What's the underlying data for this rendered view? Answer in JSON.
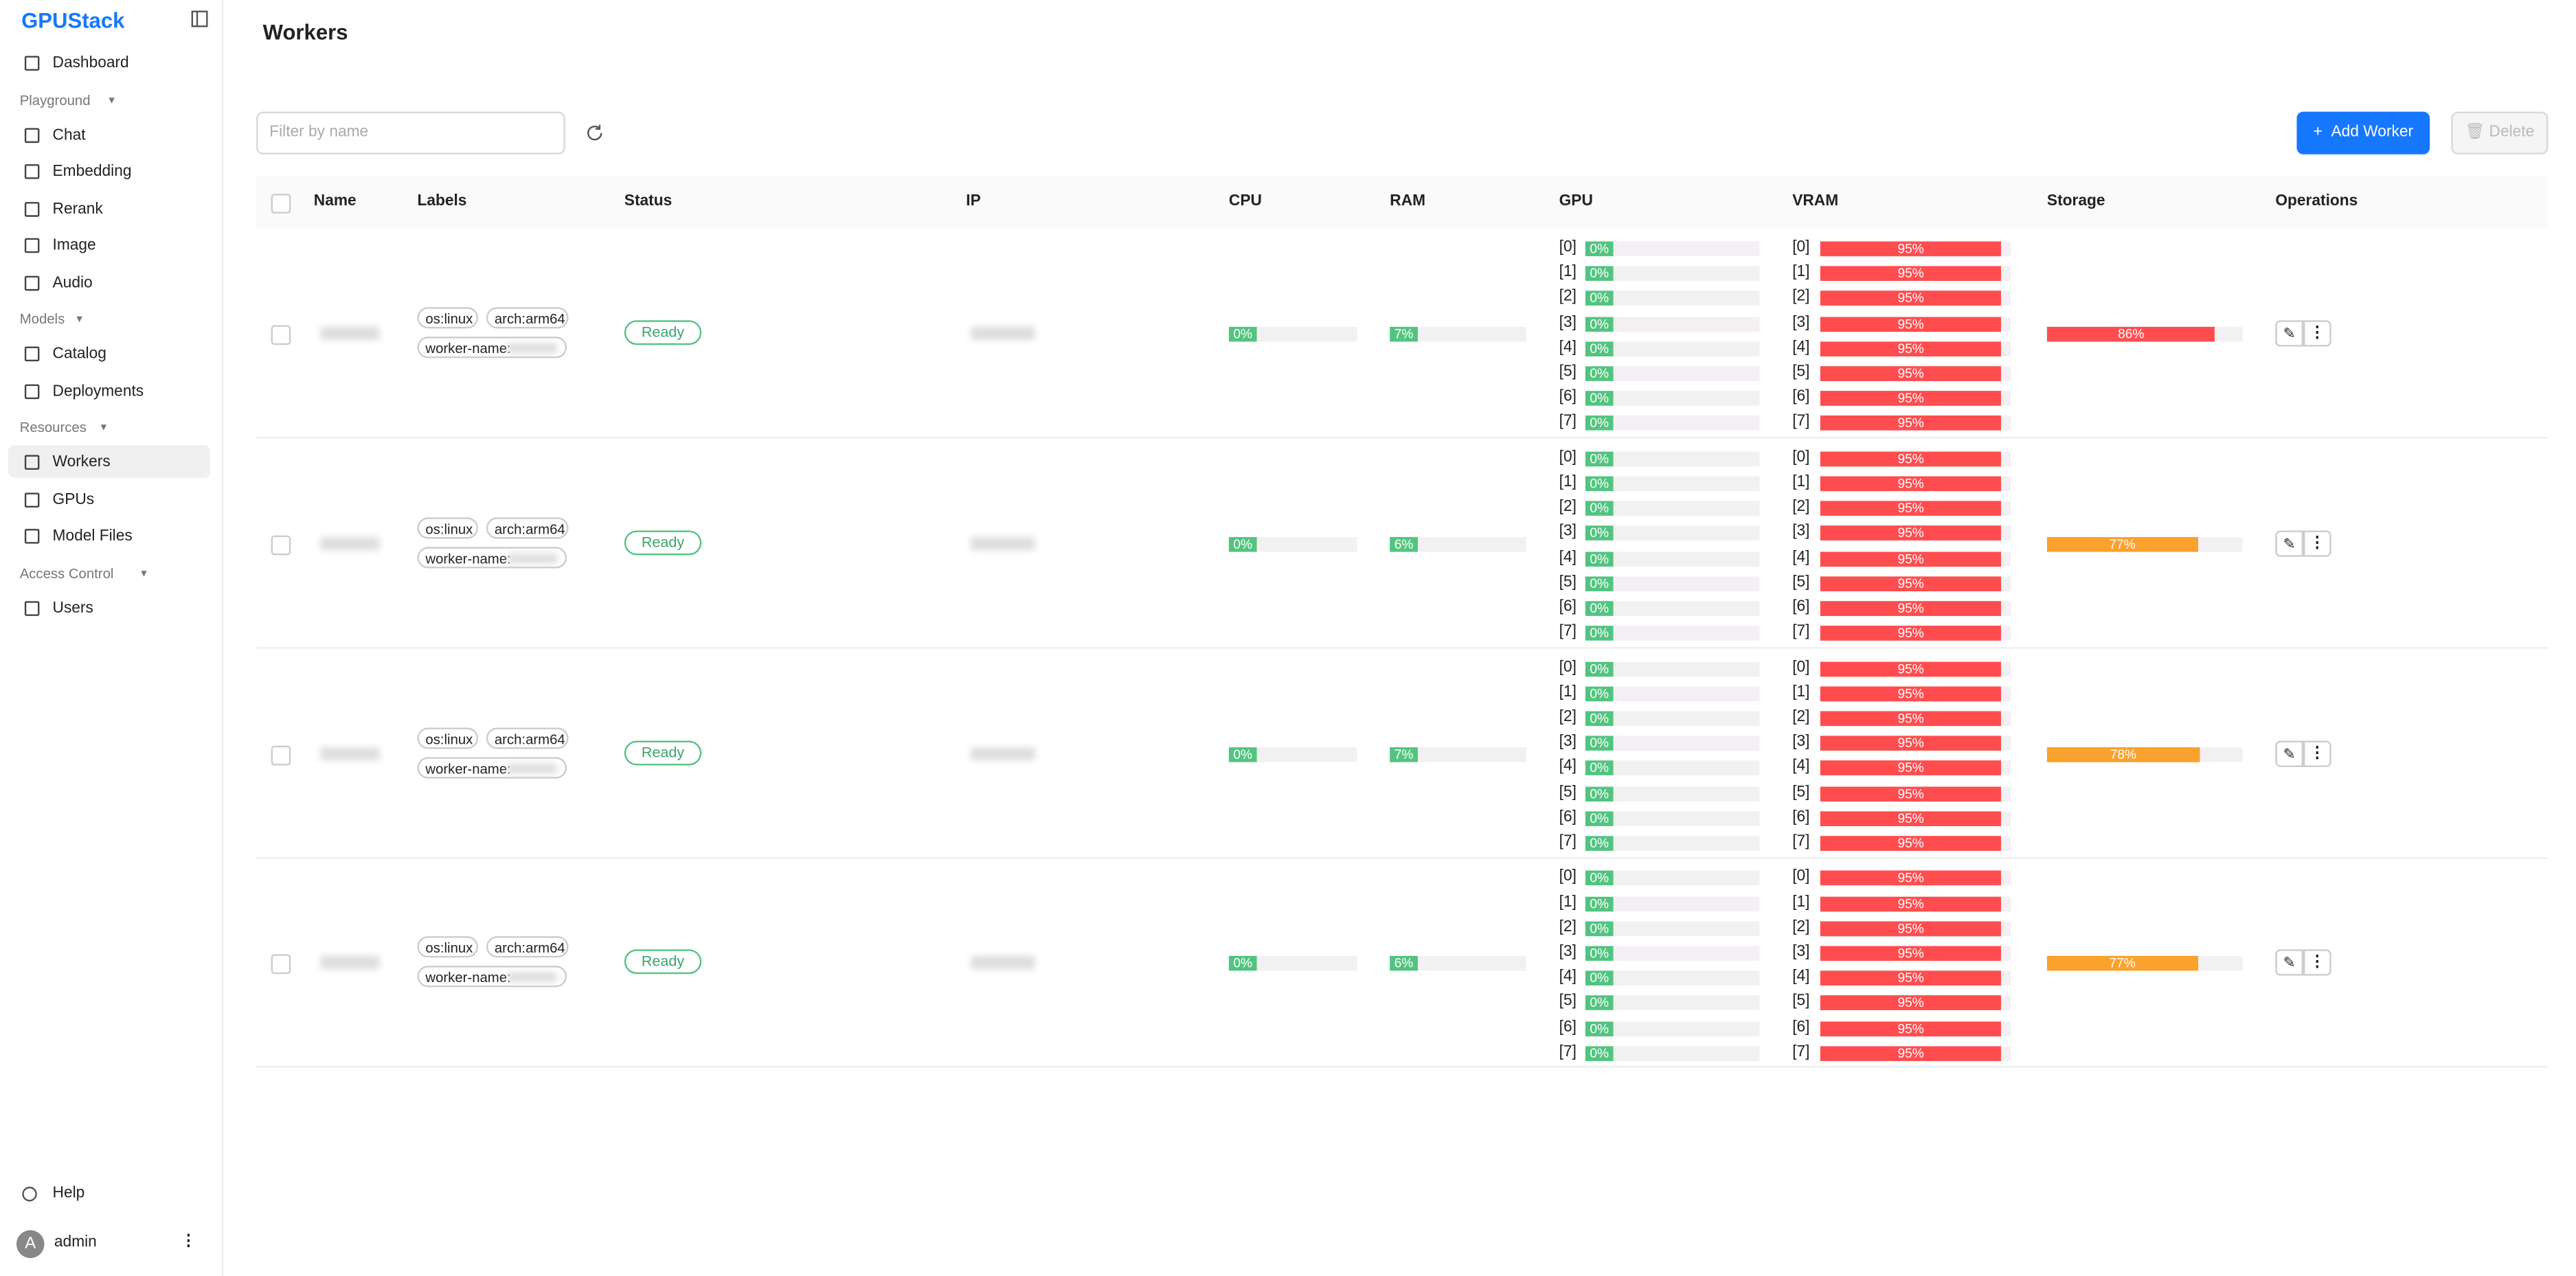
{
  "sidebar": {
    "logo": "GPUStack",
    "sections": [
      {
        "items": [
          {
            "label": "Dashboard"
          }
        ]
      },
      {
        "title": "Playground",
        "items": [
          {
            "label": "Chat"
          },
          {
            "label": "Embedding"
          },
          {
            "label": "Rerank"
          },
          {
            "label": "Image"
          },
          {
            "label": "Audio"
          }
        ]
      },
      {
        "title": "Models",
        "items": [
          {
            "label": "Catalog"
          },
          {
            "label": "Deployments"
          }
        ]
      },
      {
        "title": "Resources",
        "items": [
          {
            "label": "Workers",
            "active": true
          },
          {
            "label": "GPUs"
          },
          {
            "label": "Model Files"
          }
        ]
      },
      {
        "title": "Access Control",
        "items": [
          {
            "label": "Users"
          }
        ]
      }
    ],
    "help": "Help",
    "avatar": "A",
    "user": "admin"
  },
  "main": {
    "title": "Workers",
    "filter_placeholder": "Filter by name",
    "add_button": "Add Worker",
    "delete_button": "Delete"
  },
  "table": {
    "columns": [
      "Name",
      "Labels",
      "Status",
      "IP",
      "CPU",
      "RAM",
      "GPU",
      "VRAM",
      "Storage",
      "Operations"
    ],
    "device_labels": [
      "[0]",
      "[1]",
      "[2]",
      "[3]",
      "[4]",
      "[5]",
      "[6]",
      "[7]"
    ],
    "rows": [
      {
        "labels": [
          "os:linux",
          "arch:arm64",
          "worker-name:"
        ],
        "status": "Ready",
        "cpu": {
          "value": 0,
          "label": "0%"
        },
        "ram": {
          "value": 7,
          "label": "7%"
        },
        "gpu": [
          {
            "value": 0,
            "label": "0%"
          },
          {
            "value": 0,
            "label": "0%"
          },
          {
            "value": 0,
            "label": "0%"
          },
          {
            "value": 0,
            "label": "0%"
          },
          {
            "value": 0,
            "label": "0%"
          },
          {
            "value": 0,
            "label": "0%"
          },
          {
            "value": 0,
            "label": "0%"
          },
          {
            "value": 0,
            "label": "0%"
          }
        ],
        "vram": [
          {
            "value": 95,
            "label": "95%"
          },
          {
            "value": 95,
            "label": "95%"
          },
          {
            "value": 95,
            "label": "95%"
          },
          {
            "value": 95,
            "label": "95%"
          },
          {
            "value": 95,
            "label": "95%"
          },
          {
            "value": 95,
            "label": "95%"
          },
          {
            "value": 95,
            "label": "95%"
          },
          {
            "value": 95,
            "label": "95%"
          }
        ],
        "storage": {
          "value": 86,
          "label": "86%"
        }
      },
      {
        "labels": [
          "os:linux",
          "arch:arm64",
          "worker-name:"
        ],
        "status": "Ready",
        "cpu": {
          "value": 0,
          "label": "0%"
        },
        "ram": {
          "value": 6,
          "label": "6%"
        },
        "gpu": [
          {
            "value": 0,
            "label": "0%"
          },
          {
            "value": 0,
            "label": "0%"
          },
          {
            "value": 0,
            "label": "0%"
          },
          {
            "value": 0,
            "label": "0%"
          },
          {
            "value": 0,
            "label": "0%"
          },
          {
            "value": 0,
            "label": "0%"
          },
          {
            "value": 0,
            "label": "0%"
          },
          {
            "value": 0,
            "label": "0%"
          }
        ],
        "vram": [
          {
            "value": 95,
            "label": "95%"
          },
          {
            "value": 95,
            "label": "95%"
          },
          {
            "value": 95,
            "label": "95%"
          },
          {
            "value": 95,
            "label": "95%"
          },
          {
            "value": 95,
            "label": "95%"
          },
          {
            "value": 95,
            "label": "95%"
          },
          {
            "value": 95,
            "label": "95%"
          },
          {
            "value": 95,
            "label": "95%"
          }
        ],
        "storage": {
          "value": 77,
          "label": "77%"
        }
      },
      {
        "labels": [
          "os:linux",
          "arch:arm64",
          "worker-name:"
        ],
        "status": "Ready",
        "cpu": {
          "value": 0,
          "label": "0%"
        },
        "ram": {
          "value": 7,
          "label": "7%"
        },
        "gpu": [
          {
            "value": 0,
            "label": "0%"
          },
          {
            "value": 0,
            "label": "0%"
          },
          {
            "value": 0,
            "label": "0%"
          },
          {
            "value": 0,
            "label": "0%"
          },
          {
            "value": 0,
            "label": "0%"
          },
          {
            "value": 0,
            "label": "0%"
          },
          {
            "value": 0,
            "label": "0%"
          },
          {
            "value": 0,
            "label": "0%"
          }
        ],
        "vram": [
          {
            "value": 95,
            "label": "95%"
          },
          {
            "value": 95,
            "label": "95%"
          },
          {
            "value": 95,
            "label": "95%"
          },
          {
            "value": 95,
            "label": "95%"
          },
          {
            "value": 95,
            "label": "95%"
          },
          {
            "value": 95,
            "label": "95%"
          },
          {
            "value": 95,
            "label": "95%"
          },
          {
            "value": 95,
            "label": "95%"
          }
        ],
        "storage": {
          "value": 78,
          "label": "78%"
        }
      },
      {
        "labels": [
          "os:linux",
          "arch:arm64",
          "worker-name:"
        ],
        "status": "Ready",
        "cpu": {
          "value": 0,
          "label": "0%"
        },
        "ram": {
          "value": 6,
          "label": "6%"
        },
        "gpu": [
          {
            "value": 0,
            "label": "0%"
          },
          {
            "value": 0,
            "label": "0%"
          },
          {
            "value": 0,
            "label": "0%"
          },
          {
            "value": 0,
            "label": "0%"
          },
          {
            "value": 0,
            "label": "0%"
          },
          {
            "value": 0,
            "label": "0%"
          },
          {
            "value": 0,
            "label": "0%"
          },
          {
            "value": 0,
            "label": "0%"
          }
        ],
        "vram": [
          {
            "value": 95,
            "label": "95%"
          },
          {
            "value": 95,
            "label": "95%"
          },
          {
            "value": 95,
            "label": "95%"
          },
          {
            "value": 95,
            "label": "95%"
          },
          {
            "value": 95,
            "label": "95%"
          },
          {
            "value": 95,
            "label": "95%"
          },
          {
            "value": 95,
            "label": "95%"
          },
          {
            "value": 95,
            "label": "95%"
          }
        ],
        "storage": {
          "value": 77,
          "label": "77%"
        }
      }
    ]
  }
}
